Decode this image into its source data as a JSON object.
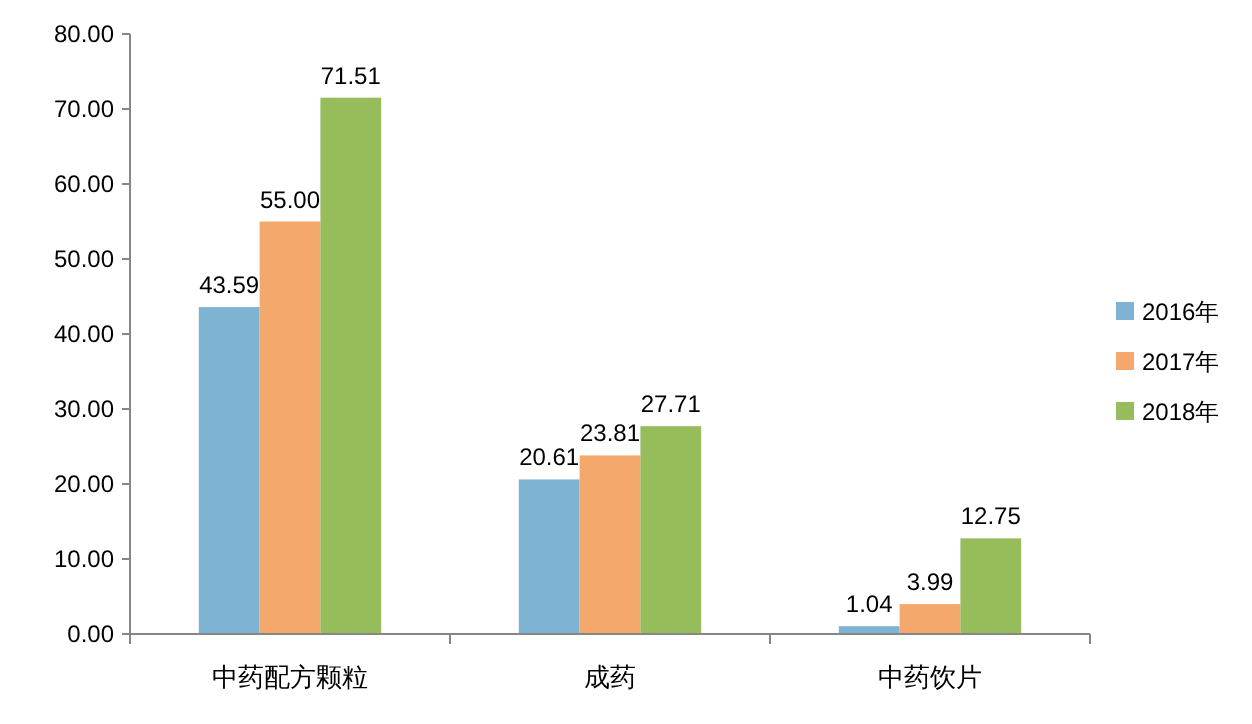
{
  "chart_data": {
    "type": "bar",
    "categories": [
      "中药配方颗粒",
      "成药",
      "中药饮片"
    ],
    "series": [
      {
        "name": "2016年",
        "color": "#7fb3d3",
        "values": [
          43.59,
          20.61,
          1.04
        ],
        "value_labels": [
          "43.59",
          "20.61",
          "1.04"
        ]
      },
      {
        "name": "2017年",
        "color": "#f5a86b",
        "values": [
          55.0,
          23.81,
          3.99
        ],
        "value_labels": [
          "55.00",
          "23.81",
          "3.99"
        ]
      },
      {
        "name": "2018年",
        "color": "#96bc5b",
        "values": [
          71.51,
          27.71,
          12.75
        ],
        "value_labels": [
          "71.51",
          "27.71",
          "12.75"
        ]
      }
    ],
    "ylim": [
      0,
      80
    ],
    "yticks": [
      {
        "value": 0,
        "label": "0.00"
      },
      {
        "value": 10,
        "label": "10.00"
      },
      {
        "value": 20,
        "label": "20.00"
      },
      {
        "value": 30,
        "label": "30.00"
      },
      {
        "value": 40,
        "label": "40.00"
      },
      {
        "value": 50,
        "label": "50.00"
      },
      {
        "value": 60,
        "label": "60.00"
      },
      {
        "value": 70,
        "label": "70.00"
      },
      {
        "value": 80,
        "label": "80.00"
      }
    ],
    "grid": false,
    "legend": "right"
  }
}
